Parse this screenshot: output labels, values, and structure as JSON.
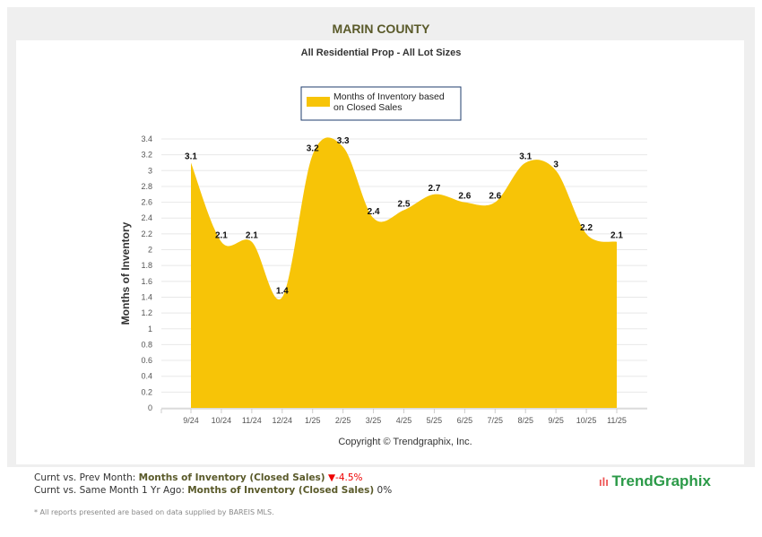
{
  "header": {
    "title": "MARIN COUNTY",
    "subtitle": "All Residential Prop - All Lot Sizes"
  },
  "chart_data": {
    "type": "area",
    "title": "MARIN COUNTY",
    "subtitle": "All Residential Prop - All Lot Sizes",
    "legend": "Months of Inventory based on Closed Sales",
    "legend_lines": [
      "Months of Inventory based",
      "on Closed Sales"
    ],
    "legend_position": "top-center",
    "ylabel": "Months of Inventory",
    "xlabel": "",
    "ylim": [
      0,
      3.4
    ],
    "yticks": [
      "0",
      "0.2",
      "0.4",
      "0.6",
      "0.8",
      "1",
      "1.2",
      "1.4",
      "1.6",
      "1.8",
      "2",
      "2.2",
      "2.4",
      "2.6",
      "2.8",
      "3",
      "3.2",
      "3.4"
    ],
    "categories": [
      "9/24",
      "10/24",
      "11/24",
      "12/24",
      "1/25",
      "2/25",
      "3/25",
      "4/25",
      "5/25",
      "6/25",
      "7/25",
      "8/25",
      "9/25",
      "10/25",
      "11/25"
    ],
    "values": [
      3.1,
      2.1,
      2.1,
      1.4,
      3.2,
      3.3,
      2.4,
      2.5,
      2.7,
      2.6,
      2.6,
      3.1,
      3,
      2.2,
      2.1
    ],
    "color": "#f7c407",
    "grid": true
  },
  "copyright": "Copyright © Trendgraphix, Inc.",
  "footer": {
    "line1_prefix": "Curnt vs. Prev Month: ",
    "line1_metric": "Months of Inventory (Closed Sales)",
    "line1_value": "-4.5%",
    "line2_prefix": "Curnt vs. Same Month 1 Yr Ago: ",
    "line2_metric": "Months of Inventory (Closed Sales)",
    "line2_value": "0%",
    "note": "* All reports presented are based on data supplied by BAREIS MLS.",
    "logo": "TrendGraphix"
  }
}
